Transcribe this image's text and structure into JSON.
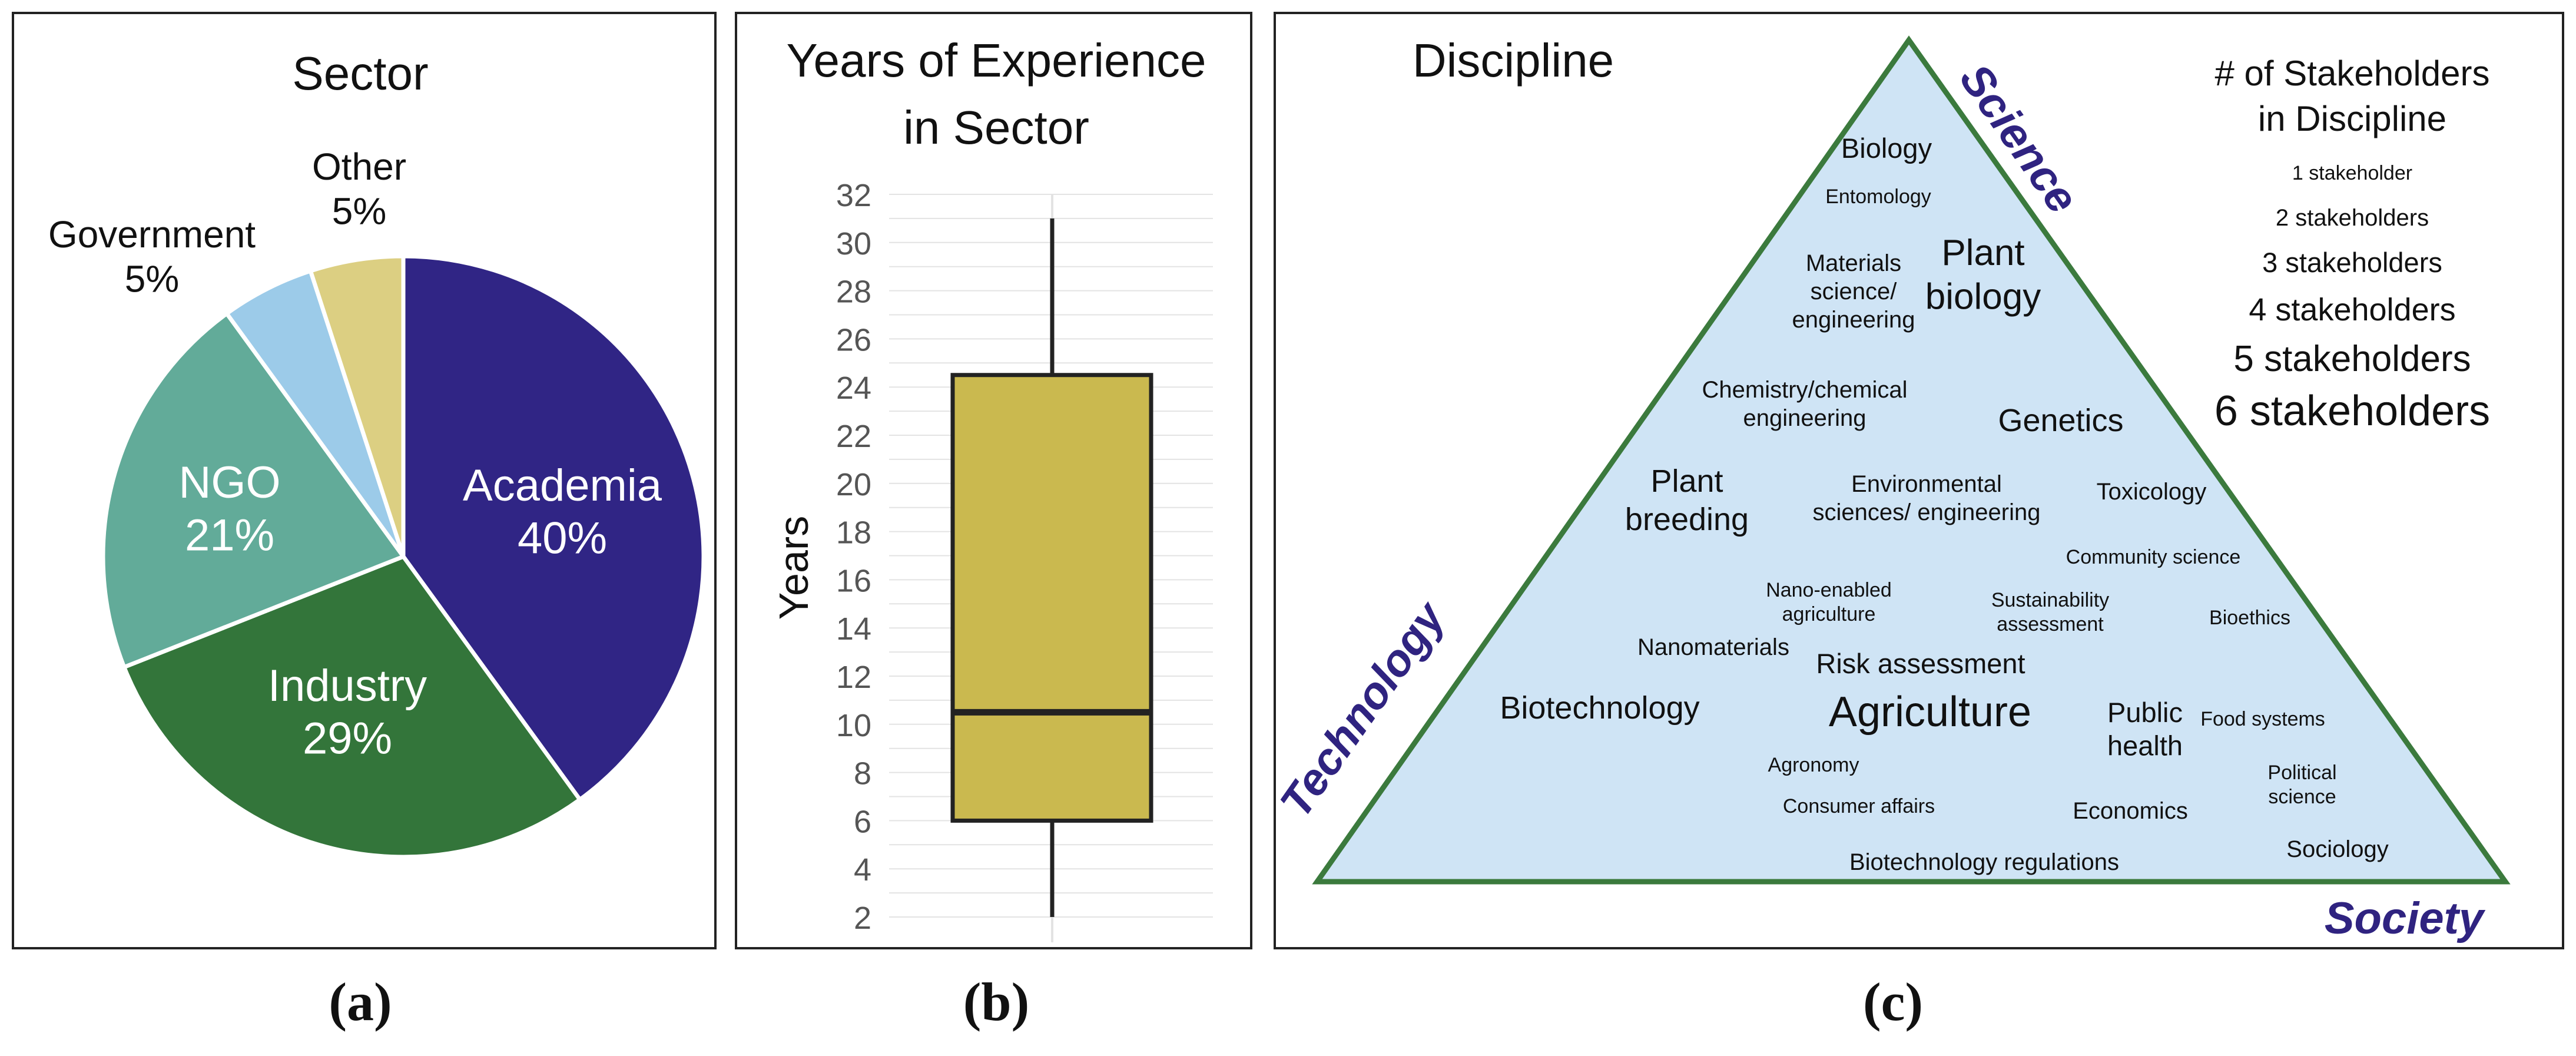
{
  "panels": {
    "a": {
      "label": "(a)"
    },
    "b": {
      "label": "(b)"
    },
    "c": {
      "label": "(c)"
    }
  },
  "chart_data": [
    {
      "type": "pie",
      "title": "Sector",
      "slices": [
        {
          "name": "Academia",
          "value": 40,
          "label": "40%",
          "color": "#302585"
        },
        {
          "name": "Industry",
          "value": 29,
          "label": "29%",
          "color": "#33753a"
        },
        {
          "name": "NGO",
          "value": 21,
          "label": "21%",
          "color": "#62ab99"
        },
        {
          "name": "Government",
          "value": 5,
          "label": "5%",
          "color": "#9ccbe9"
        },
        {
          "name": "Other",
          "value": 5,
          "label": "5%",
          "color": "#dccf82"
        }
      ]
    },
    {
      "type": "box",
      "title": "Years of Experience in Sector",
      "title_lines": [
        "Years of Experience",
        "in Sector"
      ],
      "ylabel": "Years",
      "ylim": [
        2,
        32
      ],
      "yticks": [
        2,
        4,
        6,
        8,
        10,
        12,
        14,
        16,
        18,
        20,
        22,
        24,
        26,
        28,
        30,
        32
      ],
      "grid": true,
      "box": {
        "min": 2,
        "q1": 6,
        "median": 10.5,
        "q3": 24.5,
        "max": 31,
        "color": "#cab94f"
      }
    },
    {
      "type": "ternary-word-cloud",
      "title": "Discipline",
      "corners": {
        "top": "Science",
        "left": "Technology",
        "right": "Society"
      },
      "fill": "#cfe4f5",
      "edge_color": "#3b7a3d",
      "corner_label_color": "#2f2380",
      "legend_title": "# of Stakeholders in Discipline",
      "legend_title_lines": [
        "# of Stakeholders",
        "in Discipline"
      ],
      "legend_placement": "top-right",
      "legend": [
        {
          "label": "1 stakeholder",
          "count": 1
        },
        {
          "label": "2 stakeholders",
          "count": 2
        },
        {
          "label": "3 stakeholders",
          "count": 3
        },
        {
          "label": "4 stakeholders",
          "count": 4
        },
        {
          "label": "5 stakeholders",
          "count": 5
        },
        {
          "label": "6 stakeholders",
          "count": 6
        }
      ],
      "terms": [
        {
          "lines": [
            "Biology"
          ],
          "count": 3
        },
        {
          "lines": [
            "Entomology"
          ],
          "count": 1
        },
        {
          "lines": [
            "Materials",
            "science/",
            "engineering"
          ],
          "count": 2
        },
        {
          "lines": [
            "Plant",
            "biology"
          ],
          "count": 5
        },
        {
          "lines": [
            "Chemistry/chemical",
            "engineering"
          ],
          "count": 2
        },
        {
          "lines": [
            "Genetics"
          ],
          "count": 4
        },
        {
          "lines": [
            "Plant",
            "breeding"
          ],
          "count": 4
        },
        {
          "lines": [
            "Environmental",
            "sciences/ engineering"
          ],
          "count": 2
        },
        {
          "lines": [
            "Toxicology"
          ],
          "count": 2
        },
        {
          "lines": [
            "Community science"
          ],
          "count": 1
        },
        {
          "lines": [
            "Nano-enabled",
            "agriculture"
          ],
          "count": 1
        },
        {
          "lines": [
            "Sustainability",
            "assessment"
          ],
          "count": 1
        },
        {
          "lines": [
            "Bioethics"
          ],
          "count": 1
        },
        {
          "lines": [
            "Nanomaterials"
          ],
          "count": 2
        },
        {
          "lines": [
            "Risk assessment"
          ],
          "count": 3
        },
        {
          "lines": [
            "Biotechnology"
          ],
          "count": 4
        },
        {
          "lines": [
            "Agriculture"
          ],
          "count": 6
        },
        {
          "lines": [
            "Public",
            "health"
          ],
          "count": 3
        },
        {
          "lines": [
            "Food systems"
          ],
          "count": 1
        },
        {
          "lines": [
            "Agronomy"
          ],
          "count": 1
        },
        {
          "lines": [
            "Political",
            "science"
          ],
          "count": 1
        },
        {
          "lines": [
            "Consumer affairs"
          ],
          "count": 1
        },
        {
          "lines": [
            "Economics"
          ],
          "count": 2
        },
        {
          "lines": [
            "Sociology"
          ],
          "count": 2
        },
        {
          "lines": [
            "Biotechnology regulations"
          ],
          "count": 2
        }
      ]
    }
  ]
}
